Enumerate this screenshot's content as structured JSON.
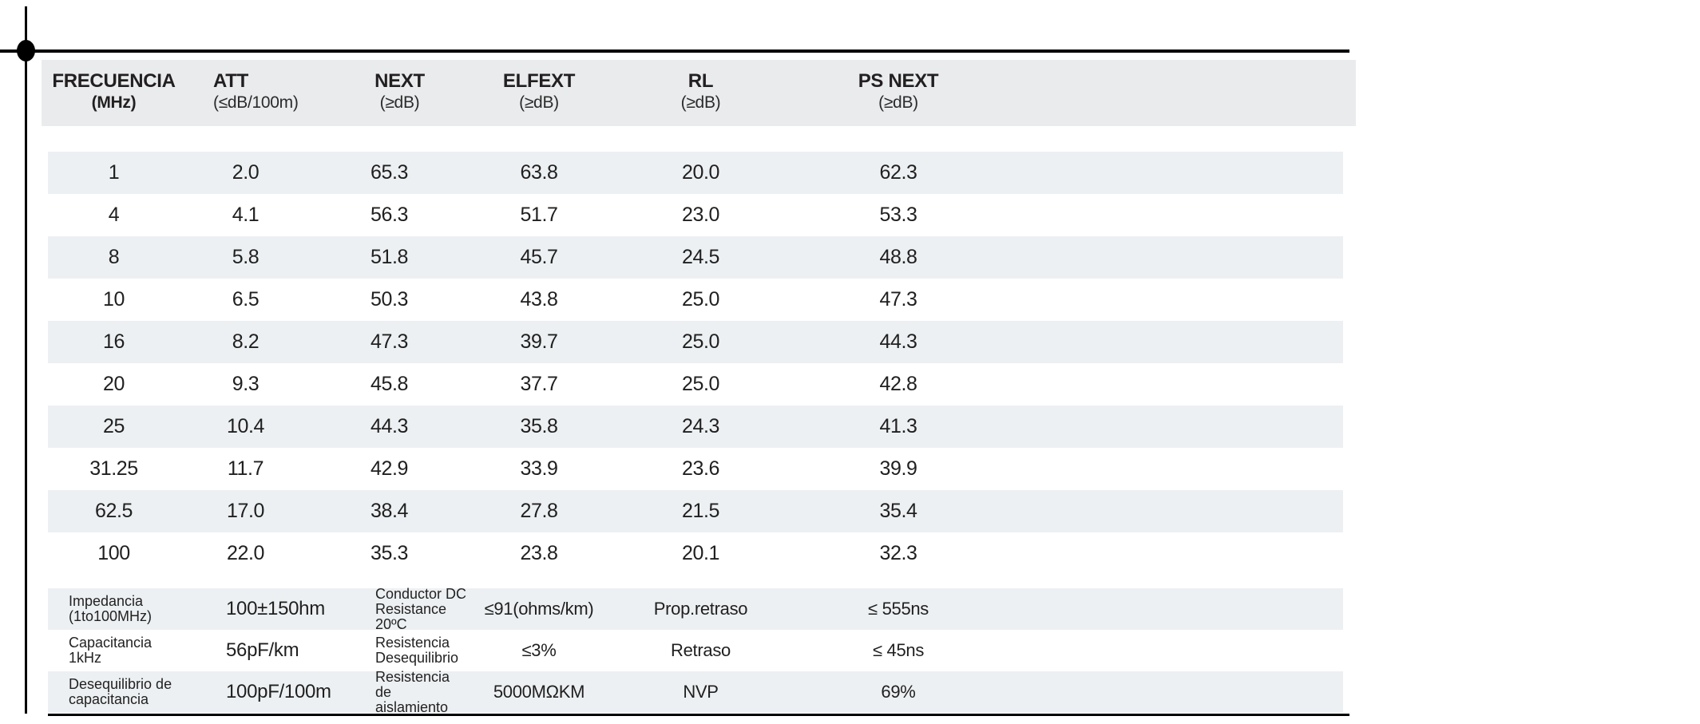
{
  "colors": {
    "background": "#ffffff",
    "header_band": "#e9ebed",
    "row_stripe": "#edf0f2",
    "text": "#1f1f1f",
    "rule": "#000000"
  },
  "table": {
    "columns": [
      {
        "title": "FRECUENCIA",
        "unit": "(MHz)"
      },
      {
        "title": "ATT",
        "unit": "(≤dB/100m)"
      },
      {
        "title": "NEXT",
        "unit": "(≥dB)"
      },
      {
        "title": "ELFEXT",
        "unit": "(≥dB)"
      },
      {
        "title": "RL",
        "unit": "(≥dB)"
      },
      {
        "title": "PS NEXT",
        "unit": "(≥dB)"
      }
    ],
    "rows": [
      [
        "1",
        "2.0",
        "65.3",
        "63.8",
        "20.0",
        "62.3"
      ],
      [
        "4",
        "4.1",
        "56.3",
        "51.7",
        "23.0",
        "53.3"
      ],
      [
        "8",
        "5.8",
        "51.8",
        "45.7",
        "24.5",
        "48.8"
      ],
      [
        "10",
        "6.5",
        "50.3",
        "43.8",
        "25.0",
        "47.3"
      ],
      [
        "16",
        "8.2",
        "47.3",
        "39.7",
        "25.0",
        "44.3"
      ],
      [
        "20",
        "9.3",
        "45.8",
        "37.7",
        "25.0",
        "42.8"
      ],
      [
        "25",
        "10.4",
        "44.3",
        "35.8",
        "24.3",
        "41.3"
      ],
      [
        "31.25",
        "11.7",
        "42.9",
        "33.9",
        "23.6",
        "39.9"
      ],
      [
        "62.5",
        "17.0",
        "38.4",
        "27.8",
        "21.5",
        "35.4"
      ],
      [
        "100",
        "22.0",
        "35.3",
        "23.8",
        "20.1",
        "32.3"
      ]
    ],
    "spec_rows": [
      [
        "Impedancia\n(1to100MHz)",
        "100±150hm",
        "Conductor DC\nResistance 20ºC",
        "≤91(ohms/km)",
        "Prop.retraso",
        "≤ 555ns"
      ],
      [
        "Capacitancia 1kHz",
        "56pF/km",
        "Resistencia\nDesequilibrio",
        "≤3%",
        "Retraso",
        "≤ 45ns"
      ],
      [
        "Desequilibrio de\ncapacitancia",
        "100pF/100m",
        "Resistencia de\naislamiento",
        "5000MΩKM",
        "NVP",
        "69%"
      ]
    ]
  }
}
